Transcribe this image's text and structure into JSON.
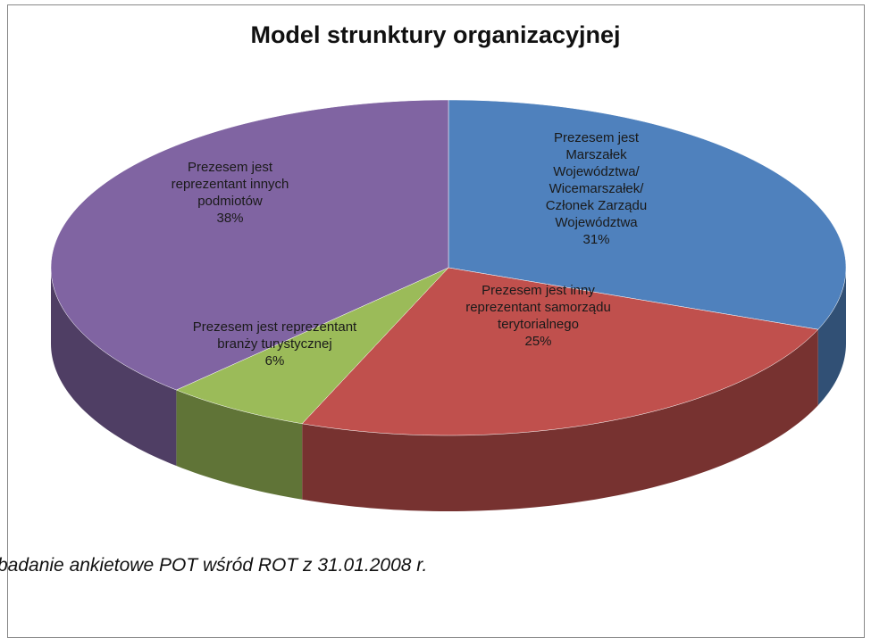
{
  "chart_data": {
    "type": "pie3d",
    "title": "Model strunktury organizacyjnej",
    "categories": [
      "Prezesem jest Marszałek Województwa/ Wicemarszałek/ Członek Zarządu Województwa",
      "Prezesem jest inny reprezentant samorządu terytorialnego",
      "Prezesem jest reprezentant branży turystycznej",
      "Prezesem jest reprezentant innych podmiotów"
    ],
    "values": [
      31,
      25,
      6,
      38
    ],
    "value_labels": [
      "31%",
      "25%",
      "6%",
      "38%"
    ],
    "colors": [
      "#4f81bd",
      "#c0504d",
      "#9bbb59",
      "#8064a2"
    ],
    "source": "badanie ankietowe POT wśród ROT z 31.01.2008 r."
  }
}
